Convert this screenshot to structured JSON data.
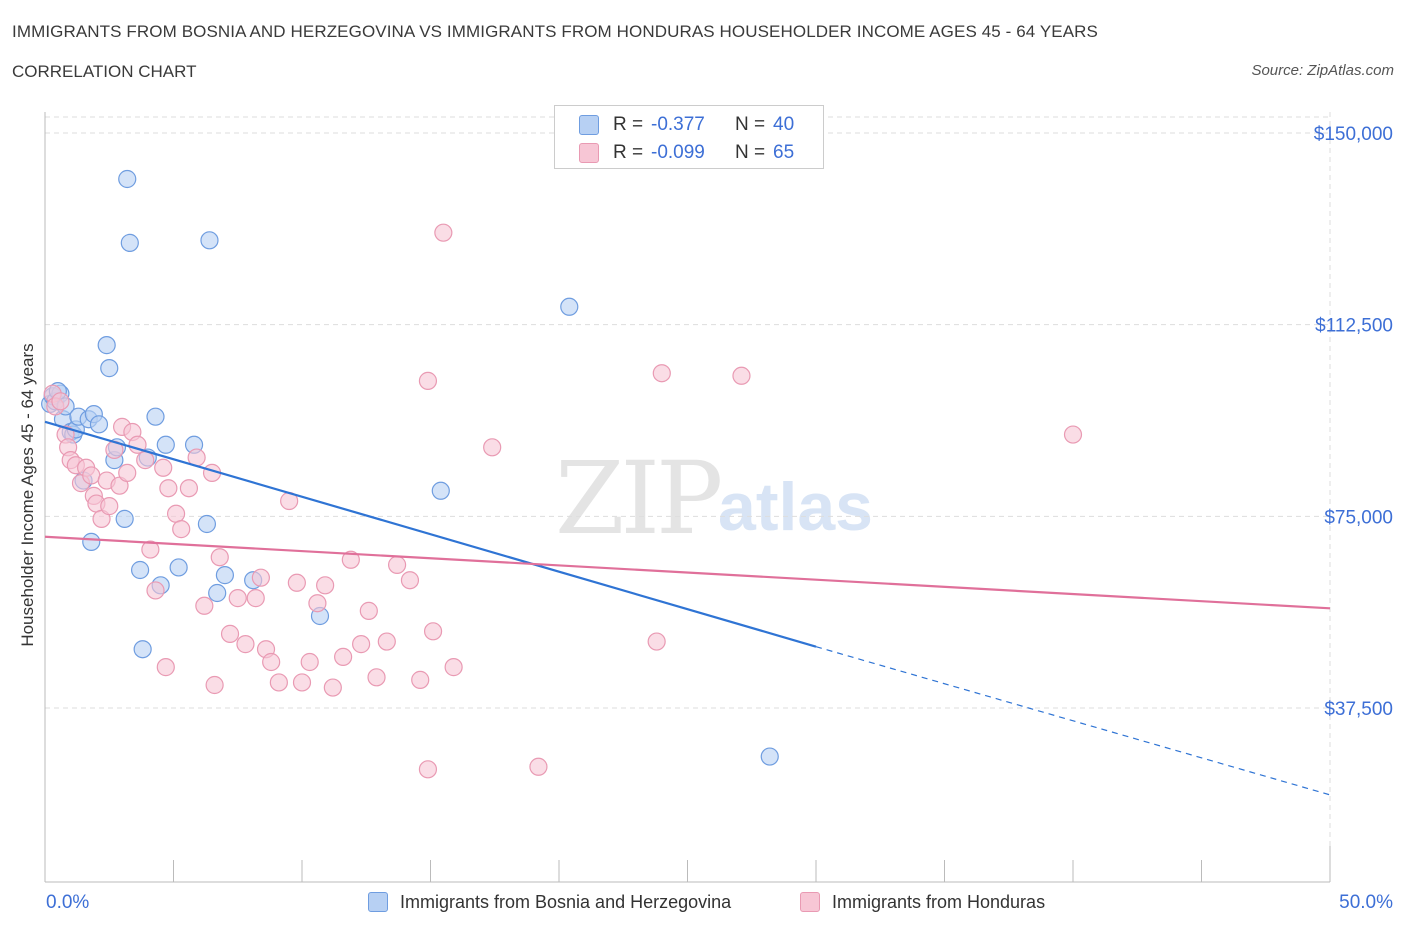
{
  "header": {
    "title": "IMMIGRANTS FROM BOSNIA AND HERZEGOVINA VS IMMIGRANTS FROM HONDURAS HOUSEHOLDER INCOME AGES 45 - 64 YEARS",
    "subtitle": "CORRELATION CHART",
    "source": "Source: ZipAtlas.com"
  },
  "watermark": {
    "zip": "ZIP",
    "atlas": "atlas"
  },
  "legend": {
    "rows": [
      {
        "r_label": "R =",
        "r_value": "-0.377",
        "n_label": "N =",
        "n_value": "40"
      },
      {
        "r_label": "R =",
        "r_value": "-0.099",
        "n_label": "N =",
        "n_value": "65"
      }
    ]
  },
  "colors": {
    "blue_fill": "#b7d0f3",
    "blue_stroke": "#6f9de0",
    "blue_line": "#2f74d4",
    "pink_fill": "#f7c6d5",
    "pink_stroke": "#e99ab3",
    "pink_line": "#e0709a",
    "axis_text": "#3d6fd6",
    "grid": "#dddddd"
  },
  "chart_data": {
    "type": "scatter",
    "title": "IMMIGRANTS FROM BOSNIA AND HERZEGOVINA VS IMMIGRANTS FROM HONDURAS HOUSEHOLDER INCOME AGES 45 - 64 YEARS",
    "ylabel": "Householder Income Ages 45 - 64 years",
    "xlim": [
      0,
      50
    ],
    "ylim": [
      0,
      150000
    ],
    "x_tick_labels": [
      "0.0%",
      "50.0%"
    ],
    "y_ticks": [
      37500,
      75000,
      112500,
      150000
    ],
    "y_tick_labels": [
      "$37,500",
      "$75,000",
      "$112,500",
      "$150,000"
    ],
    "grid": true,
    "series": [
      {
        "name": "Immigrants from Bosnia and Herzegovina",
        "points": [
          [
            0.2,
            97000
          ],
          [
            0.3,
            98500
          ],
          [
            0.4,
            97500
          ],
          [
            0.6,
            99000
          ],
          [
            0.7,
            94000
          ],
          [
            0.8,
            96500
          ],
          [
            1.0,
            91500
          ],
          [
            1.1,
            91000
          ],
          [
            1.2,
            92000
          ],
          [
            1.3,
            94500
          ],
          [
            1.5,
            82000
          ],
          [
            1.7,
            94000
          ],
          [
            1.8,
            70000
          ],
          [
            1.9,
            95000
          ],
          [
            2.1,
            93000
          ],
          [
            2.4,
            108500
          ],
          [
            2.5,
            104000
          ],
          [
            2.7,
            86000
          ],
          [
            2.8,
            88500
          ],
          [
            3.1,
            74500
          ],
          [
            3.2,
            141000
          ],
          [
            3.3,
            128500
          ],
          [
            3.7,
            64500
          ],
          [
            3.8,
            49000
          ],
          [
            4.0,
            86500
          ],
          [
            4.3,
            94500
          ],
          [
            4.5,
            61500
          ],
          [
            4.7,
            89000
          ],
          [
            5.2,
            65000
          ],
          [
            5.8,
            89000
          ],
          [
            6.3,
            73500
          ],
          [
            6.4,
            129000
          ],
          [
            6.7,
            60000
          ],
          [
            7.0,
            63500
          ],
          [
            8.1,
            62500
          ],
          [
            10.7,
            55500
          ],
          [
            15.4,
            80000
          ],
          [
            20.4,
            116000
          ],
          [
            28.2,
            28000
          ],
          [
            0.5,
            99500
          ]
        ]
      },
      {
        "name": "Immigrants from Honduras",
        "points": [
          [
            0.3,
            99000
          ],
          [
            0.4,
            96500
          ],
          [
            0.6,
            97500
          ],
          [
            0.8,
            91000
          ],
          [
            0.9,
            88500
          ],
          [
            1.0,
            86000
          ],
          [
            1.2,
            85000
          ],
          [
            1.4,
            81500
          ],
          [
            1.6,
            84500
          ],
          [
            1.8,
            83000
          ],
          [
            1.9,
            79000
          ],
          [
            2.0,
            77500
          ],
          [
            2.2,
            74500
          ],
          [
            2.4,
            82000
          ],
          [
            2.5,
            77000
          ],
          [
            2.7,
            88000
          ],
          [
            2.9,
            81000
          ],
          [
            3.0,
            92500
          ],
          [
            3.2,
            83500
          ],
          [
            3.4,
            91500
          ],
          [
            3.6,
            89000
          ],
          [
            3.9,
            86000
          ],
          [
            4.1,
            68500
          ],
          [
            4.3,
            60500
          ],
          [
            4.6,
            84500
          ],
          [
            4.8,
            80500
          ],
          [
            5.1,
            75500
          ],
          [
            5.3,
            72500
          ],
          [
            5.6,
            80500
          ],
          [
            5.9,
            86500
          ],
          [
            6.2,
            57500
          ],
          [
            6.5,
            83500
          ],
          [
            6.8,
            67000
          ],
          [
            7.2,
            52000
          ],
          [
            7.5,
            59000
          ],
          [
            7.8,
            50000
          ],
          [
            8.2,
            59000
          ],
          [
            8.4,
            63000
          ],
          [
            8.6,
            49000
          ],
          [
            8.8,
            46500
          ],
          [
            9.1,
            42500
          ],
          [
            9.5,
            78000
          ],
          [
            9.8,
            62000
          ],
          [
            10.0,
            42500
          ],
          [
            10.3,
            46500
          ],
          [
            10.6,
            58000
          ],
          [
            10.9,
            61500
          ],
          [
            11.2,
            41500
          ],
          [
            11.6,
            47500
          ],
          [
            11.9,
            66500
          ],
          [
            12.3,
            50000
          ],
          [
            12.6,
            56500
          ],
          [
            12.9,
            43500
          ],
          [
            13.3,
            50500
          ],
          [
            13.7,
            65500
          ],
          [
            14.2,
            62500
          ],
          [
            14.6,
            43000
          ],
          [
            15.1,
            52500
          ],
          [
            15.9,
            45500
          ],
          [
            14.9,
            25500
          ],
          [
            15.5,
            130500
          ],
          [
            17.4,
            88500
          ],
          [
            19.2,
            26000
          ],
          [
            23.8,
            50500
          ],
          [
            27.1,
            102500
          ]
        ]
      }
    ],
    "extra_points": {
      "Immigrants from Honduras": [
        [
          14.9,
          101500
        ],
        [
          24.0,
          103000
        ],
        [
          40.0,
          91000
        ],
        [
          4.7,
          45500
        ],
        [
          6.6,
          42000
        ]
      ]
    },
    "trend_lines": [
      {
        "series": "Immigrants from Bosnia and Herzegovina",
        "x_start": 0,
        "y_start": 93500,
        "x_solid_end": 30,
        "y_solid_end": 49500,
        "x_dashed_end": 50,
        "y_dashed_end": 20500
      },
      {
        "series": "Immigrants from Honduras",
        "x_start": 0,
        "y_start": 71000,
        "x_end": 50,
        "y_end": 57000
      }
    ],
    "legend_position": "top-center"
  },
  "bottom_legend": [
    {
      "label": "Immigrants from Bosnia and Herzegovina"
    },
    {
      "label": "Immigrants from Honduras"
    }
  ]
}
